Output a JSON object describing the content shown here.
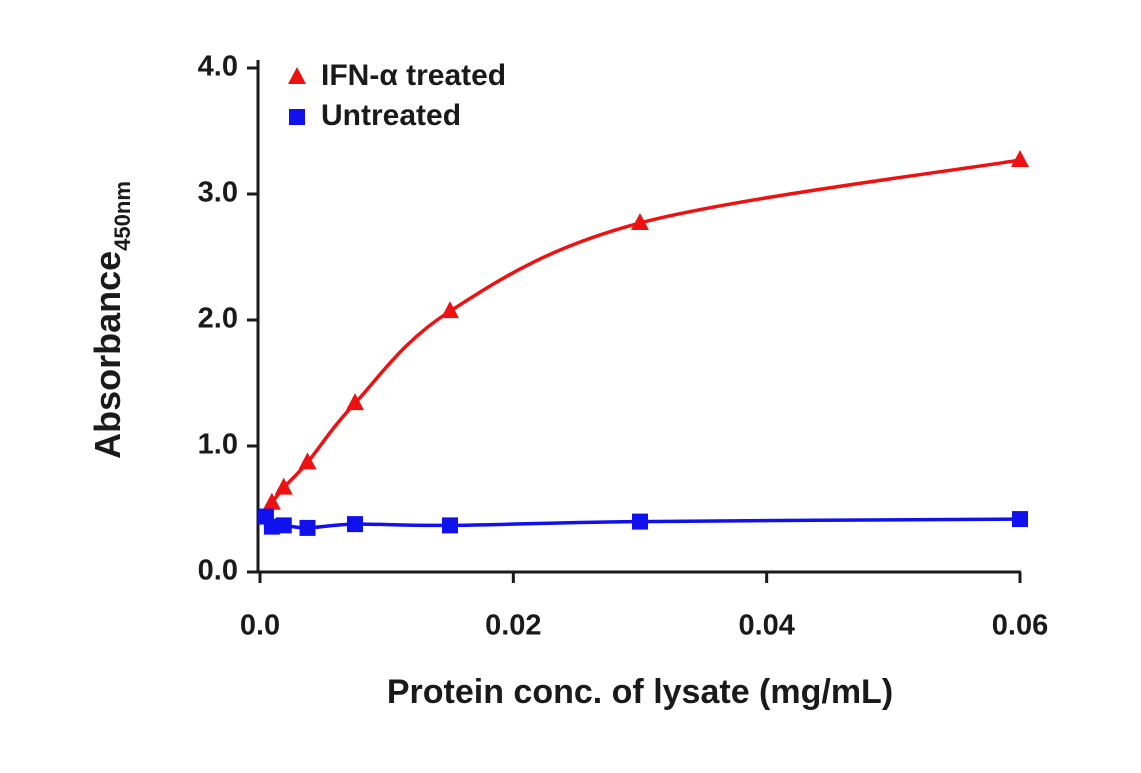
{
  "chart_data": {
    "type": "line",
    "xlabel": "Protein conc. of lysate (mg/mL)",
    "ylabel": "Absorbance",
    "ylabel_sub": "450nm",
    "xlim": [
      0,
      0.06
    ],
    "ylim": [
      0,
      4
    ],
    "xticks": [
      {
        "value": 0,
        "label": "0.0"
      },
      0.02,
      0.04,
      0.06
    ],
    "yticks": [
      {
        "value": 0,
        "label": "0.0"
      },
      {
        "value": 1,
        "label": "1.0"
      },
      {
        "value": 2,
        "label": "2.0"
      },
      {
        "value": 3,
        "label": "3.0"
      },
      {
        "value": 4,
        "label": "4.0"
      }
    ],
    "legend": "top-left",
    "series": [
      {
        "name": "IFN-α treated",
        "color": "#ee1111",
        "marker": "triangle",
        "x": [
          0.0009375,
          0.001875,
          0.00375,
          0.0075,
          0.015,
          0.03,
          0.06
        ],
        "values": [
          0.55,
          0.67,
          0.87,
          1.34,
          2.07,
          2.77,
          3.27
        ]
      },
      {
        "name": "Untreated",
        "color": "#1111ee",
        "marker": "square",
        "x": [
          0.00046875,
          0.0009375,
          0.001875,
          0.00375,
          0.0075,
          0.015,
          0.03,
          0.06
        ],
        "values": [
          0.44,
          0.36,
          0.37,
          0.35,
          0.38,
          0.37,
          0.4,
          0.42
        ]
      }
    ]
  }
}
